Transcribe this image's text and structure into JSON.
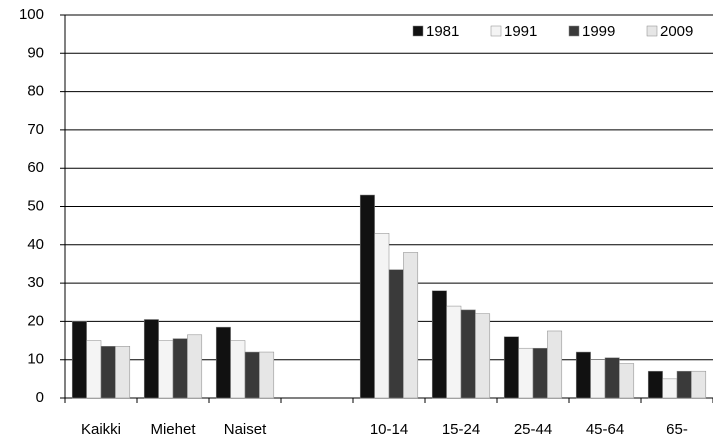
{
  "chart_data": {
    "type": "bar",
    "categories": [
      "Kaikki",
      "Miehet",
      "Naiset",
      null,
      "10-14",
      "15-24",
      "25-44",
      "45-64",
      "65-"
    ],
    "series": [
      {
        "name": "1981",
        "color": "#111111",
        "values": [
          20,
          20.5,
          18.5,
          null,
          53,
          28,
          16,
          12,
          7
        ]
      },
      {
        "name": "1991",
        "color": "#f4f4f4",
        "values": [
          15,
          15,
          15,
          null,
          43,
          24,
          13,
          10,
          5
        ]
      },
      {
        "name": "1999",
        "color": "#3a3a3a",
        "values": [
          13.5,
          15.5,
          12,
          null,
          33.5,
          23,
          13,
          10.5,
          7
        ]
      },
      {
        "name": "2009",
        "color": "#e6e6e6",
        "values": [
          13.5,
          16.5,
          12,
          null,
          38,
          22,
          17.5,
          9,
          7
        ]
      }
    ],
    "ylim": [
      0,
      100
    ],
    "yticks": [
      0,
      10,
      20,
      30,
      40,
      50,
      60,
      70,
      80,
      90,
      100
    ],
    "grid": true,
    "legend": "top-right"
  }
}
